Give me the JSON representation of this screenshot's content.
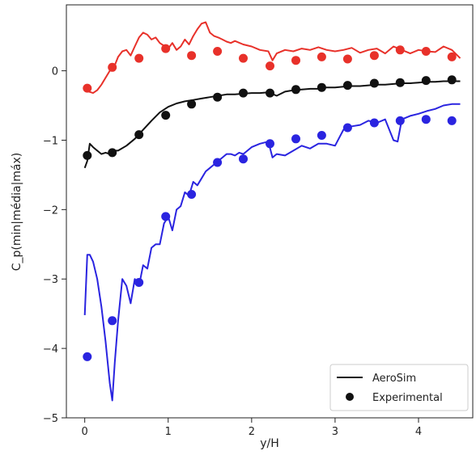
{
  "chart_data": {
    "type": "line",
    "xlabel": "y/H",
    "ylabel": "C_p(min|média|máx)",
    "xlim": [
      -0.22,
      4.65
    ],
    "ylim": [
      -5.0,
      0.95
    ],
    "x_ticks": [
      0,
      1,
      2,
      3,
      4
    ],
    "y_ticks": [
      0,
      -1,
      -2,
      -3,
      -4,
      -5
    ],
    "grid": false,
    "legend": {
      "position": "bottom-right",
      "entries": [
        {
          "label": "AeroSim",
          "marker": "line",
          "color": "#111111"
        },
        {
          "label": "Experimental",
          "marker": "circle",
          "color": "#111111"
        }
      ]
    },
    "series": [
      {
        "role": "max",
        "kind": "line",
        "color": "#e8312a",
        "x": [
          0.0,
          0.05,
          0.1,
          0.15,
          0.2,
          0.25,
          0.3,
          0.35,
          0.4,
          0.45,
          0.5,
          0.55,
          0.6,
          0.65,
          0.7,
          0.75,
          0.8,
          0.85,
          0.9,
          0.95,
          1.0,
          1.05,
          1.1,
          1.15,
          1.2,
          1.25,
          1.3,
          1.35,
          1.4,
          1.45,
          1.5,
          1.55,
          1.6,
          1.65,
          1.7,
          1.75,
          1.8,
          1.9,
          2.0,
          2.1,
          2.2,
          2.25,
          2.3,
          2.4,
          2.5,
          2.6,
          2.7,
          2.8,
          2.9,
          3.0,
          3.1,
          3.2,
          3.3,
          3.4,
          3.5,
          3.6,
          3.7,
          3.8,
          3.9,
          4.0,
          4.1,
          4.2,
          4.3,
          4.4,
          4.5
        ],
        "y": [
          -0.25,
          -0.3,
          -0.32,
          -0.28,
          -0.2,
          -0.1,
          0.0,
          0.05,
          0.2,
          0.28,
          0.3,
          0.22,
          0.35,
          0.48,
          0.55,
          0.52,
          0.45,
          0.48,
          0.4,
          0.36,
          0.32,
          0.4,
          0.3,
          0.35,
          0.45,
          0.38,
          0.5,
          0.6,
          0.68,
          0.7,
          0.55,
          0.5,
          0.48,
          0.45,
          0.42,
          0.4,
          0.43,
          0.38,
          0.35,
          0.3,
          0.28,
          0.15,
          0.25,
          0.3,
          0.28,
          0.32,
          0.3,
          0.34,
          0.3,
          0.28,
          0.3,
          0.33,
          0.26,
          0.3,
          0.32,
          0.25,
          0.35,
          0.3,
          0.25,
          0.3,
          0.28,
          0.27,
          0.35,
          0.3,
          0.18
        ]
      },
      {
        "role": "max",
        "kind": "points",
        "color": "#e8312a",
        "x": [
          0.03,
          0.33,
          0.65,
          0.97,
          1.28,
          1.59,
          1.9,
          2.22,
          2.53,
          2.84,
          3.15,
          3.47,
          3.78,
          4.09,
          4.4
        ],
        "y": [
          -0.25,
          0.05,
          0.18,
          0.32,
          0.22,
          0.28,
          0.18,
          0.07,
          0.15,
          0.2,
          0.17,
          0.22,
          0.3,
          0.28,
          0.2
        ]
      },
      {
        "role": "mean",
        "kind": "line",
        "color": "#111111",
        "x": [
          0.0,
          0.03,
          0.06,
          0.1,
          0.15,
          0.2,
          0.25,
          0.3,
          0.35,
          0.4,
          0.5,
          0.6,
          0.7,
          0.8,
          0.9,
          1.0,
          1.1,
          1.2,
          1.3,
          1.4,
          1.5,
          1.6,
          1.7,
          1.8,
          1.9,
          2.0,
          2.1,
          2.2,
          2.3,
          2.4,
          2.5,
          2.6,
          2.7,
          2.8,
          2.9,
          3.0,
          3.1,
          3.2,
          3.3,
          3.4,
          3.5,
          3.6,
          3.7,
          3.8,
          3.9,
          4.0,
          4.1,
          4.2,
          4.3,
          4.4,
          4.5
        ],
        "y": [
          -1.4,
          -1.3,
          -1.05,
          -1.1,
          -1.15,
          -1.2,
          -1.18,
          -1.2,
          -1.15,
          -1.15,
          -1.08,
          -0.98,
          -0.85,
          -0.72,
          -0.6,
          -0.52,
          -0.47,
          -0.44,
          -0.42,
          -0.4,
          -0.38,
          -0.36,
          -0.34,
          -0.34,
          -0.33,
          -0.32,
          -0.32,
          -0.31,
          -0.36,
          -0.3,
          -0.28,
          -0.27,
          -0.26,
          -0.26,
          -0.24,
          -0.24,
          -0.23,
          -0.22,
          -0.22,
          -0.21,
          -0.2,
          -0.2,
          -0.19,
          -0.18,
          -0.18,
          -0.17,
          -0.16,
          -0.16,
          -0.15,
          -0.15,
          -0.15
        ]
      },
      {
        "role": "mean",
        "kind": "points",
        "color": "#111111",
        "x": [
          0.03,
          0.33,
          0.65,
          0.97,
          1.28,
          1.59,
          1.9,
          2.22,
          2.53,
          2.84,
          3.15,
          3.47,
          3.78,
          4.09,
          4.4
        ],
        "y": [
          -1.22,
          -1.18,
          -0.92,
          -0.64,
          -0.48,
          -0.38,
          -0.32,
          -0.32,
          -0.27,
          -0.24,
          -0.21,
          -0.18,
          -0.17,
          -0.14,
          -0.13
        ]
      },
      {
        "role": "min",
        "kind": "line",
        "color": "#2a24e0",
        "x": [
          0.0,
          0.03,
          0.06,
          0.1,
          0.15,
          0.2,
          0.25,
          0.3,
          0.33,
          0.36,
          0.4,
          0.45,
          0.5,
          0.55,
          0.6,
          0.65,
          0.7,
          0.75,
          0.8,
          0.85,
          0.9,
          0.95,
          1.0,
          1.05,
          1.1,
          1.15,
          1.2,
          1.25,
          1.3,
          1.35,
          1.4,
          1.45,
          1.5,
          1.55,
          1.6,
          1.65,
          1.7,
          1.75,
          1.8,
          1.85,
          1.9,
          1.95,
          2.0,
          2.1,
          2.2,
          2.25,
          2.3,
          2.4,
          2.5,
          2.6,
          2.7,
          2.8,
          2.9,
          3.0,
          3.1,
          3.2,
          3.3,
          3.4,
          3.5,
          3.6,
          3.7,
          3.75,
          3.8,
          3.9,
          4.0,
          4.1,
          4.2,
          4.3,
          4.4,
          4.5
        ],
        "y": [
          -3.52,
          -2.65,
          -2.65,
          -2.75,
          -3.0,
          -3.4,
          -3.9,
          -4.5,
          -4.75,
          -4.2,
          -3.6,
          -3.0,
          -3.1,
          -3.35,
          -3.0,
          -3.1,
          -2.8,
          -2.85,
          -2.55,
          -2.5,
          -2.5,
          -2.2,
          -2.1,
          -2.3,
          -2.0,
          -1.95,
          -1.75,
          -1.8,
          -1.6,
          -1.65,
          -1.55,
          -1.45,
          -1.4,
          -1.35,
          -1.3,
          -1.25,
          -1.2,
          -1.2,
          -1.22,
          -1.18,
          -1.2,
          -1.15,
          -1.1,
          -1.05,
          -1.02,
          -1.25,
          -1.2,
          -1.22,
          -1.15,
          -1.08,
          -1.12,
          -1.05,
          -1.05,
          -1.08,
          -0.85,
          -0.8,
          -0.78,
          -0.72,
          -0.75,
          -0.7,
          -1.0,
          -1.02,
          -0.7,
          -0.65,
          -0.62,
          -0.58,
          -0.55,
          -0.5,
          -0.48,
          -0.48
        ]
      },
      {
        "role": "min",
        "kind": "points",
        "color": "#2a24e0",
        "x": [
          0.03,
          0.33,
          0.65,
          0.97,
          1.28,
          1.59,
          1.9,
          2.22,
          2.53,
          2.84,
          3.15,
          3.47,
          3.78,
          4.09,
          4.4
        ],
        "y": [
          -4.12,
          -3.6,
          -3.05,
          -2.1,
          -1.78,
          -1.32,
          -1.27,
          -1.05,
          -0.98,
          -0.93,
          -0.82,
          -0.75,
          -0.72,
          -0.7,
          -0.72
        ]
      }
    ]
  }
}
